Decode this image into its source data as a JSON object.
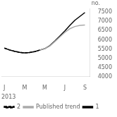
{
  "chart_data": {
    "type": "line",
    "xlabel": "2013",
    "ylabel": "no.",
    "x": [
      0,
      0.5,
      1,
      1.5,
      2,
      2.5,
      3,
      3.5,
      4,
      4.5,
      5,
      5.5,
      6,
      6.5,
      7,
      7.5,
      8
    ],
    "xlim": [
      -0.3,
      8.5
    ],
    "xticks": [
      {
        "value": 0,
        "label": "J"
      },
      {
        "value": 2,
        "label": "M"
      },
      {
        "value": 4,
        "label": "M"
      },
      {
        "value": 6,
        "label": "J"
      },
      {
        "value": 8,
        "label": "S"
      }
    ],
    "ylim": [
      4000,
      7700
    ],
    "yticks": [
      4000,
      4500,
      5000,
      5500,
      6000,
      6500,
      7000,
      7500
    ],
    "grid": false,
    "legend": "lower left",
    "series": [
      {
        "name": "2",
        "color": "#000000",
        "line_style": "dashed",
        "values": [
          5550,
          5450,
          5380,
          5320,
          5290,
          5310,
          5360,
          5440,
          null,
          null,
          null,
          null,
          null,
          null,
          null,
          null,
          null
        ]
      },
      {
        "name": "Published trend",
        "color": "#aaaaaa",
        "line_style": "solid",
        "values": [
          null,
          null,
          null,
          null,
          null,
          null,
          null,
          5440,
          5520,
          5660,
          5900,
          6150,
          6400,
          6600,
          6720,
          6780,
          6800
        ]
      },
      {
        "name": "1",
        "color": "#000000",
        "line_style": "solid",
        "values": [
          5550,
          5450,
          5380,
          5320,
          5290,
          5310,
          5360,
          5440,
          5520,
          5680,
          5930,
          6200,
          6480,
          6780,
          7060,
          7270,
          7480
        ]
      }
    ]
  }
}
